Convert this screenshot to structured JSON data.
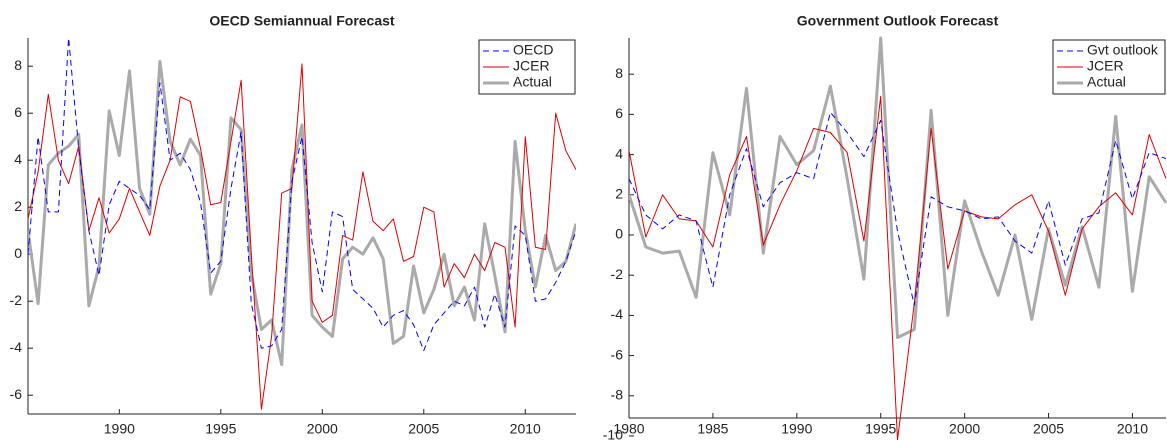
{
  "chart_data": [
    {
      "type": "line",
      "title": "OECD Semiannual Forecast",
      "x": [
        1985.5,
        1986,
        1986.5,
        1987,
        1987.5,
        1988,
        1988.5,
        1989,
        1989.5,
        1990,
        1990.5,
        1991,
        1991.5,
        1992,
        1992.5,
        1993,
        1993.5,
        1994,
        1994.5,
        1995,
        1995.5,
        1996,
        1996.5,
        1997,
        1997.5,
        1998,
        1998.5,
        1999,
        1999.5,
        2000,
        2000.5,
        2001,
        2001.5,
        2002,
        2002.5,
        2003,
        2003.5,
        2004,
        2004.5,
        2005,
        2005.5,
        2006,
        2006.5,
        2007,
        2007.5,
        2008,
        2008.5,
        2009,
        2009.5,
        2010,
        2010.5,
        2011,
        2011.5,
        2012,
        2012.5
      ],
      "series": [
        {
          "name": "OECD",
          "color": "#0000ff",
          "dash": true,
          "width": 1,
          "values": [
            0.0,
            5.0,
            1.8,
            1.8,
            9.2,
            4.5,
            1.0,
            -0.9,
            2.1,
            3.1,
            2.8,
            2.5,
            1.9,
            7.3,
            4.0,
            4.3,
            3.6,
            2.2,
            -0.8,
            -0.3,
            2.8,
            5.2,
            -2.1,
            -4.0,
            -3.9,
            -3.2,
            3.1,
            5.0,
            0.5,
            -1.6,
            1.8,
            1.6,
            -1.5,
            -1.9,
            -2.3,
            -3.1,
            -2.6,
            -2.4,
            -3.0,
            -4.1,
            -3.0,
            -2.5,
            -2.0,
            -2.2,
            -1.4,
            -3.1,
            -1.7,
            -3.1,
            1.2,
            0.8,
            -2.0,
            -1.9,
            -1.2,
            -0.3,
            1.0
          ]
        },
        {
          "name": "JCER",
          "color": "#e00000",
          "dash": false,
          "width": 1,
          "values": [
            1.5,
            3.5,
            6.8,
            4.0,
            3.0,
            4.6,
            1.0,
            2.4,
            0.9,
            1.5,
            2.8,
            1.8,
            0.8,
            2.9,
            4.0,
            6.7,
            6.5,
            4.5,
            2.1,
            2.2,
            4.8,
            7.4,
            0.0,
            -6.6,
            -3.5,
            2.6,
            2.8,
            8.1,
            -2.0,
            -2.9,
            -2.6,
            0.8,
            0.6,
            3.5,
            1.4,
            1.0,
            1.5,
            -0.3,
            -0.1,
            2.0,
            1.8,
            -1.4,
            -0.4,
            -1.0,
            0.0,
            -0.7,
            0.5,
            0.3,
            -3.1,
            5.0,
            0.3,
            0.2,
            6.0,
            4.4,
            3.6
          ]
        },
        {
          "name": "Actual",
          "color": "#aaaaaa",
          "dash": false,
          "width": 3,
          "values": [
            1.0,
            -2.1,
            3.8,
            4.3,
            4.6,
            5.1,
            -2.2,
            -0.5,
            6.1,
            4.2,
            7.8,
            2.8,
            1.7,
            8.2,
            4.8,
            3.8,
            4.9,
            4.2,
            -1.7,
            -0.4,
            5.8,
            5.3,
            -0.8,
            -3.2,
            -2.8,
            -4.7,
            3.6,
            5.5,
            -2.6,
            -3.1,
            -3.5,
            -0.2,
            0.3,
            0.0,
            0.7,
            -0.2,
            -3.8,
            -3.5,
            -0.5,
            -2.5,
            -1.5,
            0.0,
            -2.2,
            -1.4,
            -2.8,
            1.3,
            -0.9,
            -3.3,
            4.8,
            1.0,
            -1.4,
            0.8,
            -0.7,
            -0.3,
            1.3
          ]
        }
      ],
      "xlim": [
        1985.5,
        2012.5
      ],
      "xticks": [
        1990,
        1995,
        2000,
        2005,
        2010
      ],
      "ylim": [
        -6.8,
        9.2
      ],
      "yticks": [
        -6,
        -4,
        -2,
        0,
        2,
        4,
        6,
        8
      ]
    },
    {
      "type": "line",
      "title": "Government Outlook Forecast",
      "x": [
        1980,
        1981,
        1982,
        1983,
        1984,
        1985,
        1986,
        1987,
        1988,
        1989,
        1990,
        1991,
        1992,
        1993,
        1994,
        1995,
        1996,
        1997,
        1998,
        1999,
        2000,
        2001,
        2002,
        2003,
        2004,
        2005,
        2006,
        2007,
        2008,
        2009,
        2010,
        2011,
        2012
      ],
      "series": [
        {
          "name": "Gvt outlook",
          "color": "#0000ff",
          "dash": true,
          "width": 1,
          "values": [
            2.8,
            1.0,
            0.3,
            1.0,
            0.7,
            -2.6,
            2.0,
            4.3,
            1.4,
            2.6,
            3.1,
            2.8,
            6.1,
            5.1,
            3.9,
            5.7,
            0.2,
            -3.5,
            1.9,
            1.4,
            1.2,
            0.8,
            0.9,
            -0.3,
            -0.9,
            1.7,
            -1.5,
            0.8,
            1.1,
            4.7,
            1.8,
            4.1,
            3.8
          ]
        },
        {
          "name": "JCER",
          "color": "#e00000",
          "dash": false,
          "width": 1,
          "values": [
            4.2,
            -0.1,
            2.0,
            0.8,
            0.7,
            -0.6,
            3.0,
            4.9,
            -0.5,
            1.5,
            3.2,
            5.3,
            5.1,
            4.1,
            -0.3,
            6.9,
            -10.2,
            -3.4,
            5.3,
            -1.7,
            1.2,
            0.9,
            0.8,
            1.5,
            2.0,
            0.2,
            -3.0,
            0.3,
            1.4,
            2.1,
            1.0,
            5.0,
            2.8
          ]
        },
        {
          "name": "Actual",
          "color": "#aaaaaa",
          "dash": false,
          "width": 3,
          "values": [
            2.0,
            -0.6,
            -0.9,
            -0.8,
            -3.1,
            4.1,
            1.0,
            7.3,
            -0.9,
            4.9,
            3.5,
            4.2,
            7.4,
            2.8,
            -2.2,
            9.8,
            -5.1,
            -4.7,
            6.2,
            -4.0,
            1.7,
            -0.8,
            -3.0,
            0.0,
            -4.2,
            0.3,
            -2.5,
            0.4,
            -2.6,
            5.9,
            -2.8,
            2.9,
            1.6
          ]
        }
      ],
      "xlim": [
        1980,
        2012
      ],
      "xticks": [
        1980,
        1985,
        1990,
        1995,
        2000,
        2005,
        2010
      ],
      "ylim": [
        -10.2,
        9.8
      ],
      "yticks": [
        -10,
        -8,
        -6,
        -4,
        -2,
        0,
        2,
        4,
        6,
        8
      ]
    }
  ]
}
